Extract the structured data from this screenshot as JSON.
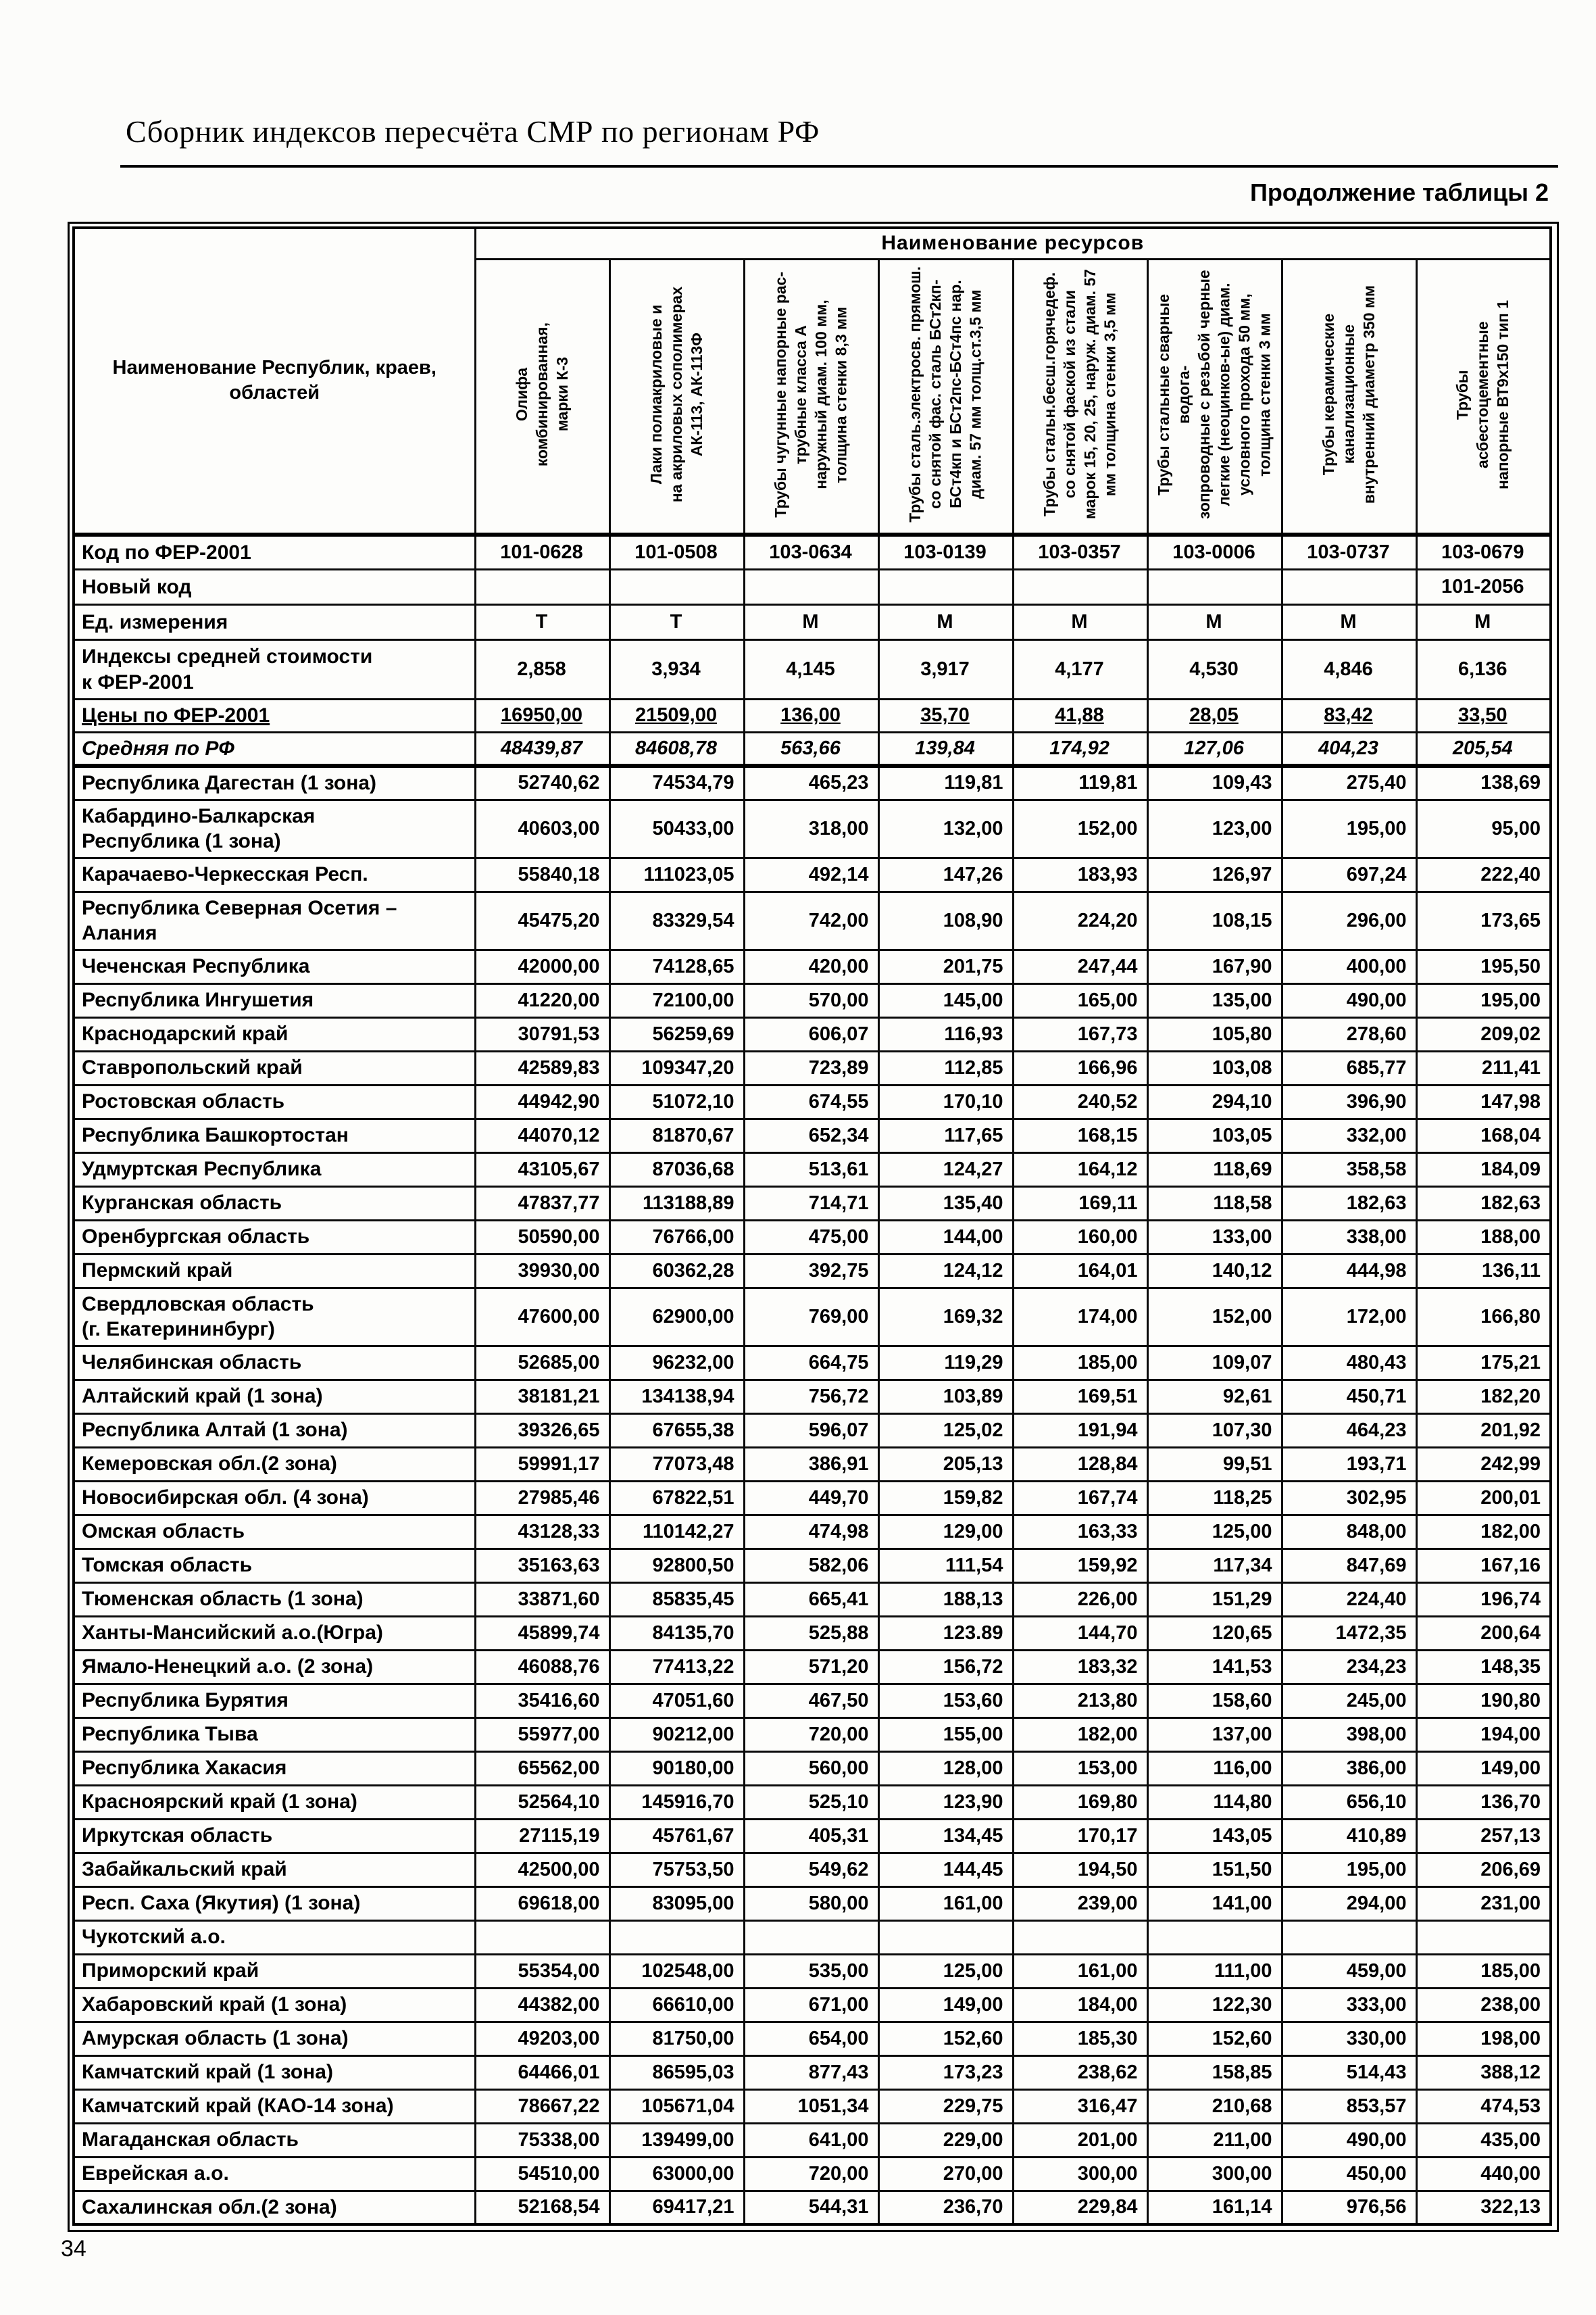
{
  "document": {
    "title": "Сборник индексов пересчёта СМР  по регионам РФ",
    "continuation": "Продолжение таблицы 2",
    "page_number": "34"
  },
  "table": {
    "resources_group_header": "Наименование ресурсов",
    "region_column_header": "Наименование Республик, краев,\nобластей",
    "resource_columns": [
      "Олифа\nкомбинированная,\nмарки К-3",
      "Лаки полиакриловые и\nна акриловых сополимерах\nАК-113, АК-113Ф",
      "Трубы чугунные напорные рас-\nтрубные класса А\nнаружный диам. 100 мм,\nтолщина стенки 8,3 мм",
      "Трубы сталь.электросв. прямош.\nсо снятой фас. сталь БСт2кп-\nБСт4кп и БСт2пс-БСт4пс нар.\nдиам. 57 мм  толщ.ст.3,5 мм",
      "Трубы стальн.бесш.горячедеф.\nсо снятой фаской  из стали\nмарок 15, 20, 25, наруж. диам. 57\nмм толщина стенки 3,5 мм",
      "Трубы стальные сварные водога-\nзопроводные с резьбой черные\nлегкие (неоцинков-ые) диам.\nусловного прохода 50 мм,\nтолщина стенки 3 мм",
      "Трубы керамические\nканализационные\nвнутренний диаметр  350 мм",
      "Трубы\nасбестоцементные\nнапорные ВТ9х150 тип 1"
    ],
    "meta_rows": [
      {
        "label": "Код по ФЕР-2001",
        "cls": "r-code",
        "values": [
          "101-0628",
          "101-0508",
          "103-0634",
          "103-0139",
          "103-0357",
          "103-0006",
          "103-0737",
          "103-0679"
        ]
      },
      {
        "label": "Новый код",
        "cls": "r-newcode",
        "values": [
          "",
          "",
          "",
          "",
          "",
          "",
          "",
          "101-2056"
        ]
      },
      {
        "label": "Ед. измерения",
        "cls": "r-unit",
        "values": [
          "Т",
          "Т",
          "М",
          "М",
          "М",
          "М",
          "М",
          "М"
        ]
      },
      {
        "label": "Индексы средней стоимости\nк ФЕР-2001",
        "cls": "r-index",
        "values": [
          "2,858",
          "3,934",
          "4,145",
          "3,917",
          "4,177",
          "4,530",
          "4,846",
          "6,136"
        ]
      },
      {
        "label": "Цены по ФЕР-2001",
        "cls": "r-price",
        "values": [
          "16950,00",
          "21509,00",
          "136,00",
          "35,70",
          "41,88",
          "28,05",
          "83,42",
          "33,50"
        ]
      },
      {
        "label": "Средняя по РФ",
        "cls": "r-avg",
        "values": [
          "48439,87",
          "84608,78",
          "563,66",
          "139,84",
          "174,92",
          "127,06",
          "404,23",
          "205,54"
        ]
      }
    ],
    "rows": [
      {
        "name": "Республика Дагестан (1 зона)",
        "values": [
          "52740,62",
          "74534,79",
          "465,23",
          "119,81",
          "119,81",
          "109,43",
          "275,40",
          "138,69"
        ]
      },
      {
        "name": "Кабардино-Балкарская\nРеспублика (1 зона)",
        "values": [
          "40603,00",
          "50433,00",
          "318,00",
          "132,00",
          "152,00",
          "123,00",
          "195,00",
          "95,00"
        ]
      },
      {
        "name": "Карачаево-Черкесская Респ.",
        "values": [
          "55840,18",
          "111023,05",
          "492,14",
          "147,26",
          "183,93",
          "126,97",
          "697,24",
          "222,40"
        ]
      },
      {
        "name": "Республика Северная Осетия –\nАлания",
        "values": [
          "45475,20",
          "83329,54",
          "742,00",
          "108,90",
          "224,20",
          "108,15",
          "296,00",
          "173,65"
        ]
      },
      {
        "name": "Чеченская Республика",
        "values": [
          "42000,00",
          "74128,65",
          "420,00",
          "201,75",
          "247,44",
          "167,90",
          "400,00",
          "195,50"
        ]
      },
      {
        "name": "Республика Ингушетия",
        "values": [
          "41220,00",
          "72100,00",
          "570,00",
          "145,00",
          "165,00",
          "135,00",
          "490,00",
          "195,00"
        ]
      },
      {
        "name": "Краснодарский край",
        "values": [
          "30791,53",
          "56259,69",
          "606,07",
          "116,93",
          "167,73",
          "105,80",
          "278,60",
          "209,02"
        ]
      },
      {
        "name": "Ставропольский край",
        "values": [
          "42589,83",
          "109347,20",
          "723,89",
          "112,85",
          "166,96",
          "103,08",
          "685,77",
          "211,41"
        ]
      },
      {
        "name": "Ростовская область",
        "values": [
          "44942,90",
          "51072,10",
          "674,55",
          "170,10",
          "240,52",
          "294,10",
          "396,90",
          "147,98"
        ]
      },
      {
        "name": "Республика Башкортостан",
        "values": [
          "44070,12",
          "81870,67",
          "652,34",
          "117,65",
          "168,15",
          "103,05",
          "332,00",
          "168,04"
        ]
      },
      {
        "name": "Удмуртская Республика",
        "values": [
          "43105,67",
          "87036,68",
          "513,61",
          "124,27",
          "164,12",
          "118,69",
          "358,58",
          "184,09"
        ]
      },
      {
        "name": "Курганская область",
        "values": [
          "47837,77",
          "113188,89",
          "714,71",
          "135,40",
          "169,11",
          "118,58",
          "182,63",
          "182,63"
        ]
      },
      {
        "name": "Оренбургская область",
        "values": [
          "50590,00",
          "76766,00",
          "475,00",
          "144,00",
          "160,00",
          "133,00",
          "338,00",
          "188,00"
        ]
      },
      {
        "name": "Пермский край",
        "values": [
          "39930,00",
          "60362,28",
          "392,75",
          "124,12",
          "164,01",
          "140,12",
          "444,98",
          "136,11"
        ]
      },
      {
        "name": "Свердловская область\n(г. Екатерининбург)",
        "values": [
          "47600,00",
          "62900,00",
          "769,00",
          "169,32",
          "174,00",
          "152,00",
          "172,00",
          "166,80"
        ]
      },
      {
        "name": "Челябинская область",
        "values": [
          "52685,00",
          "96232,00",
          "664,75",
          "119,29",
          "185,00",
          "109,07",
          "480,43",
          "175,21"
        ]
      },
      {
        "name": "Алтайский край (1 зона)",
        "values": [
          "38181,21",
          "134138,94",
          "756,72",
          "103,89",
          "169,51",
          "92,61",
          "450,71",
          "182,20"
        ]
      },
      {
        "name": "Республика Алтай (1 зона)",
        "values": [
          "39326,65",
          "67655,38",
          "596,07",
          "125,02",
          "191,94",
          "107,30",
          "464,23",
          "201,92"
        ]
      },
      {
        "name": "Кемеровская обл.(2 зона)",
        "values": [
          "59991,17",
          "77073,48",
          "386,91",
          "205,13",
          "128,84",
          "99,51",
          "193,71",
          "242,99"
        ]
      },
      {
        "name": "Новосибирская обл. (4 зона)",
        "values": [
          "27985,46",
          "67822,51",
          "449,70",
          "159,82",
          "167,74",
          "118,25",
          "302,95",
          "200,01"
        ]
      },
      {
        "name": "Омская область",
        "values": [
          "43128,33",
          "110142,27",
          "474,98",
          "129,00",
          "163,33",
          "125,00",
          "848,00",
          "182,00"
        ]
      },
      {
        "name": "Томская область",
        "values": [
          "35163,63",
          "92800,50",
          "582,06",
          "111,54",
          "159,92",
          "117,34",
          "847,69",
          "167,16"
        ]
      },
      {
        "name": "Тюменская область (1 зона)",
        "values": [
          "33871,60",
          "85835,45",
          "665,41",
          "188,13",
          "226,00",
          "151,29",
          "224,40",
          "196,74"
        ]
      },
      {
        "name": "Ханты-Мансийский а.о.(Югра)",
        "values": [
          "45899,74",
          "84135,70",
          "525,88",
          "123.89",
          "144,70",
          "120,65",
          "1472,35",
          "200,64"
        ]
      },
      {
        "name": "Ямало-Ненецкий а.о. (2 зона)",
        "values": [
          "46088,76",
          "77413,22",
          "571,20",
          "156,72",
          "183,32",
          "141,53",
          "234,23",
          "148,35"
        ]
      },
      {
        "name": "Республика Бурятия",
        "values": [
          "35416,60",
          "47051,60",
          "467,50",
          "153,60",
          "213,80",
          "158,60",
          "245,00",
          "190,80"
        ]
      },
      {
        "name": "Республика Тыва",
        "values": [
          "55977,00",
          "90212,00",
          "720,00",
          "155,00",
          "182,00",
          "137,00",
          "398,00",
          "194,00"
        ]
      },
      {
        "name": "Республика Хакасия",
        "values": [
          "65562,00",
          "90180,00",
          "560,00",
          "128,00",
          "153,00",
          "116,00",
          "386,00",
          "149,00"
        ]
      },
      {
        "name": "Красноярский край (1 зона)",
        "values": [
          "52564,10",
          "145916,70",
          "525,10",
          "123,90",
          "169,80",
          "114,80",
          "656,10",
          "136,70"
        ]
      },
      {
        "name": "Иркутская область",
        "values": [
          "27115,19",
          "45761,67",
          "405,31",
          "134,45",
          "170,17",
          "143,05",
          "410,89",
          "257,13"
        ]
      },
      {
        "name": "Забайкальский край",
        "values": [
          "42500,00",
          "75753,50",
          "549,62",
          "144,45",
          "194,50",
          "151,50",
          "195,00",
          "206,69"
        ]
      },
      {
        "name": "Респ. Саха (Якутия) (1 зона)",
        "values": [
          "69618,00",
          "83095,00",
          "580,00",
          "161,00",
          "239,00",
          "141,00",
          "294,00",
          "231,00"
        ]
      },
      {
        "name": "Чукотский а.о.",
        "values": [
          "",
          "",
          "",
          "",
          "",
          "",
          "",
          ""
        ]
      },
      {
        "name": "Приморский край",
        "values": [
          "55354,00",
          "102548,00",
          "535,00",
          "125,00",
          "161,00",
          "111,00",
          "459,00",
          "185,00"
        ]
      },
      {
        "name": "Хабаровский край (1 зона)",
        "values": [
          "44382,00",
          "66610,00",
          "671,00",
          "149,00",
          "184,00",
          "122,30",
          "333,00",
          "238,00"
        ]
      },
      {
        "name": "Амурская область (1 зона)",
        "values": [
          "49203,00",
          "81750,00",
          "654,00",
          "152,60",
          "185,30",
          "152,60",
          "330,00",
          "198,00"
        ]
      },
      {
        "name": "Камчатский край (1 зона)",
        "values": [
          "64466,01",
          "86595,03",
          "877,43",
          "173,23",
          "238,62",
          "158,85",
          "514,43",
          "388,12"
        ]
      },
      {
        "name": "Камчатский край (КАО-14 зона)",
        "values": [
          "78667,22",
          "105671,04",
          "1051,34",
          "229,75",
          "316,47",
          "210,68",
          "853,57",
          "474,53"
        ]
      },
      {
        "name": "Магаданская область",
        "values": [
          "75338,00",
          "139499,00",
          "641,00",
          "229,00",
          "201,00",
          "211,00",
          "490,00",
          "435,00"
        ]
      },
      {
        "name": "Еврейская а.о.",
        "values": [
          "54510,00",
          "63000,00",
          "720,00",
          "270,00",
          "300,00",
          "300,00",
          "450,00",
          "440,00"
        ]
      },
      {
        "name": "Сахалинская обл.(2 зона)",
        "values": [
          "52168,54",
          "69417,21",
          "544,31",
          "236,70",
          "229,84",
          "161,14",
          "976,56",
          "322,13"
        ]
      }
    ]
  }
}
